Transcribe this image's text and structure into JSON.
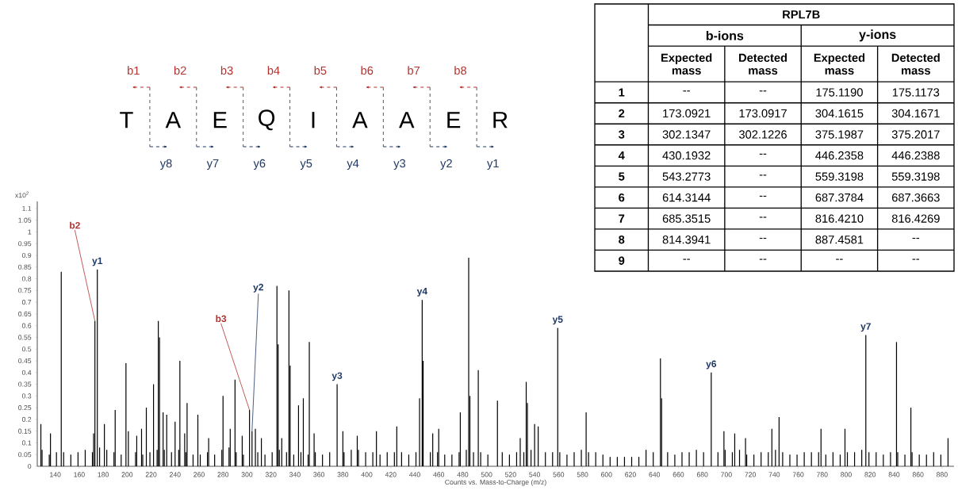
{
  "chart_data": [
    {
      "type": "other",
      "categories": [
        "T",
        "A",
        "E",
        "Q",
        "I",
        "A",
        "A",
        "E",
        "R"
      ],
      "annotations": [
        "b1",
        "b2",
        "b3",
        "b4",
        "b5",
        "b6",
        "b7",
        "b8",
        "y8",
        "y7",
        "y6",
        "y5",
        "y4",
        "y3",
        "y2",
        "y1"
      ]
    },
    {
      "type": "heatmap",
      "title": "RPL7B",
      "annotations": [
        "b-ions",
        "y-ions"
      ],
      "categories": [
        "Expected mass",
        "Detected mass",
        "Expected mass",
        "Detected mass"
      ],
      "y_categories": [
        "1",
        "2",
        "3",
        "4",
        "5",
        "6",
        "7",
        "8",
        "9"
      ],
      "cells": [
        [
          null,
          null,
          null,
          null
        ],
        [
          null,
          null,
          null,
          null
        ],
        [
          null,
          null,
          null,
          null
        ],
        [
          null,
          null,
          null,
          null
        ],
        [
          null,
          null,
          null,
          null
        ],
        [
          null,
          null,
          null,
          null
        ],
        [
          null,
          null,
          null,
          null
        ],
        [
          null,
          null,
          null,
          null
        ],
        [
          null,
          null,
          null,
          null
        ]
      ],
      "cell_labels": [
        [
          "--",
          "--",
          "175.1190",
          "175.1173"
        ],
        [
          "173.0921",
          "173.0917",
          "304.1615",
          "304.1671"
        ],
        [
          "302.1347",
          "302.1226",
          "375.1987",
          "375.2017"
        ],
        [
          "430.1932",
          "--",
          "446.2358",
          "446.2388"
        ],
        [
          "543.2773",
          "--",
          "559.3198",
          "559.3198"
        ],
        [
          "614.3144",
          "--",
          "687.3784",
          "687.3663"
        ],
        [
          "685.3515",
          "--",
          "816.4210",
          "816.4269"
        ],
        [
          "814.3941",
          "--",
          "887.4581",
          "--"
        ],
        [
          "--",
          "--",
          "--",
          "--"
        ]
      ]
    },
    {
      "type": "bar",
      "xlabel": "Counts vs. Mass-to-Charge (m/z)",
      "ylabel": "x10$^{2}$",
      "xlim": [
        125,
        890
      ],
      "ylim": [
        0,
        1.13
      ],
      "xticks": [
        140,
        160,
        180,
        200,
        220,
        240,
        260,
        280,
        300,
        320,
        340,
        360,
        380,
        400,
        420,
        440,
        460,
        480,
        500,
        520,
        540,
        560,
        580,
        600,
        620,
        640,
        660,
        680,
        700,
        720,
        740,
        760,
        780,
        800,
        820,
        840,
        860,
        880
      ],
      "yticks": [
        0,
        0.05,
        0.1,
        0.15,
        0.2,
        0.25,
        0.3,
        0.35,
        0.4,
        0.45,
        0.5,
        0.55,
        0.6,
        0.65,
        0.7,
        0.75,
        0.8,
        0.85,
        0.9,
        0.95,
        1,
        1.05,
        1.1
      ],
      "series": [
        {
          "color": "#000000",
          "x": [
            128,
            129,
            135,
            136,
            141,
            145,
            147,
            153,
            159,
            165,
            171,
            172,
            173.1,
            175.1,
            177,
            181,
            183,
            189,
            190,
            195,
            199,
            201,
            207,
            208,
            212,
            213,
            216,
            219,
            222,
            225,
            226,
            227,
            230,
            231,
            233,
            237,
            240,
            243,
            244,
            248,
            249,
            250,
            255,
            259,
            261,
            267,
            268,
            273,
            279,
            280,
            285,
            286,
            290,
            291,
            296,
            297,
            302.1,
            304.2,
            307,
            309,
            312,
            315,
            321,
            325,
            326,
            327,
            329,
            333,
            335,
            336,
            339,
            343,
            345,
            347,
            351,
            352,
            356,
            357,
            363,
            369,
            375.2,
            380,
            381,
            387,
            392,
            393,
            399,
            405,
            408,
            411,
            417,
            423,
            425,
            429,
            435,
            441,
            444,
            446.2,
            447,
            453,
            455,
            459,
            460,
            465,
            471,
            477,
            478,
            483,
            485,
            486,
            489,
            493,
            495,
            501,
            509,
            513,
            519,
            525,
            528,
            531,
            533,
            534,
            537,
            540,
            543,
            549,
            555,
            559.3,
            561,
            567,
            573,
            579,
            583,
            585,
            591,
            597,
            603,
            609,
            615,
            621,
            627,
            633,
            639,
            645,
            646,
            651,
            657,
            663,
            669,
            675,
            681,
            687.4,
            693,
            698,
            699,
            705,
            707,
            711,
            716,
            717,
            723,
            729,
            735,
            738,
            741,
            744,
            747,
            753,
            759,
            765,
            771,
            777,
            779,
            783,
            789,
            795,
            799,
            801,
            807,
            813,
            816.4,
            819,
            825,
            831,
            837,
            842,
            843,
            849,
            854,
            855,
            861,
            867,
            873,
            879,
            885
          ],
          "values": [
            0.18,
            0.07,
            0.05,
            0.14,
            0.06,
            0.83,
            0.06,
            0.05,
            0.06,
            0.07,
            0.06,
            0.14,
            0.62,
            0.84,
            0.08,
            0.18,
            0.07,
            0.06,
            0.24,
            0.05,
            0.44,
            0.15,
            0.06,
            0.13,
            0.16,
            0.05,
            0.25,
            0.06,
            0.35,
            0.07,
            0.62,
            0.55,
            0.23,
            0.07,
            0.22,
            0.06,
            0.19,
            0.07,
            0.45,
            0.14,
            0.06,
            0.27,
            0.05,
            0.22,
            0.05,
            0.06,
            0.12,
            0.05,
            0.07,
            0.3,
            0.08,
            0.16,
            0.37,
            0.06,
            0.13,
            0.05,
            0.24,
            0.15,
            0.16,
            0.06,
            0.12,
            0.05,
            0.06,
            0.77,
            0.52,
            0.07,
            0.12,
            0.06,
            0.75,
            0.43,
            0.05,
            0.26,
            0.06,
            0.29,
            0.05,
            0.53,
            0.14,
            0.06,
            0.05,
            0.06,
            0.35,
            0.15,
            0.06,
            0.07,
            0.13,
            0.07,
            0.06,
            0.06,
            0.15,
            0.05,
            0.06,
            0.06,
            0.17,
            0.06,
            0.05,
            0.06,
            0.29,
            0.71,
            0.45,
            0.06,
            0.14,
            0.06,
            0.16,
            0.05,
            0.05,
            0.06,
            0.23,
            0.07,
            0.89,
            0.3,
            0.06,
            0.41,
            0.06,
            0.05,
            0.28,
            0.06,
            0.05,
            0.06,
            0.12,
            0.06,
            0.36,
            0.27,
            0.07,
            0.18,
            0.17,
            0.06,
            0.06,
            0.59,
            0.06,
            0.05,
            0.06,
            0.07,
            0.23,
            0.06,
            0.06,
            0.05,
            0.04,
            0.04,
            0.04,
            0.04,
            0.04,
            0.07,
            0.06,
            0.46,
            0.29,
            0.06,
            0.05,
            0.06,
            0.06,
            0.07,
            0.06,
            0.4,
            0.06,
            0.15,
            0.07,
            0.06,
            0.14,
            0.07,
            0.12,
            0.05,
            0.05,
            0.06,
            0.06,
            0.16,
            0.07,
            0.21,
            0.06,
            0.05,
            0.05,
            0.06,
            0.06,
            0.06,
            0.16,
            0.05,
            0.06,
            0.05,
            0.16,
            0.06,
            0.06,
            0.07,
            0.56,
            0.06,
            0.06,
            0.05,
            0.06,
            0.53,
            0.06,
            0.05,
            0.25,
            0.06,
            0.05,
            0.05,
            0.06,
            0.05,
            0.12
          ]
        }
      ],
      "annotations": [
        {
          "text": "b2",
          "x": 173.1,
          "y": 0.62
        },
        {
          "text": "y1",
          "x": 175.1,
          "y": 0.84
        },
        {
          "text": "b3",
          "x": 302.1,
          "y": 0.24
        },
        {
          "text": "y2",
          "x": 304.2,
          "y": 0.15
        },
        {
          "text": "y3",
          "x": 375.2,
          "y": 0.35
        },
        {
          "text": "y4",
          "x": 446.2,
          "y": 0.71
        },
        {
          "text": "y5",
          "x": 559.3,
          "y": 0.59
        },
        {
          "text": "y6",
          "x": 687.4,
          "y": 0.4
        },
        {
          "text": "y7",
          "x": 816.4,
          "y": 0.56
        }
      ]
    }
  ]
}
